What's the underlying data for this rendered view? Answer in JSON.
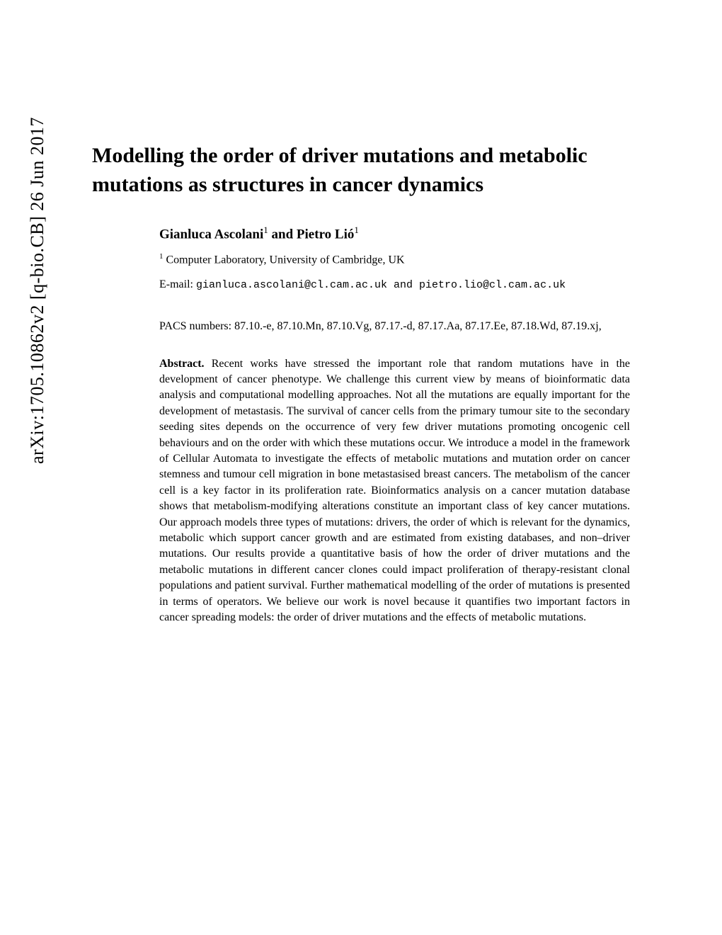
{
  "arxiv": {
    "identifier": "arXiv:1705.10862v2  [q-bio.CB]  26 Jun 2017"
  },
  "paper": {
    "title": "Modelling the order of driver mutations and metabolic mutations as structures in cancer dynamics",
    "author1_name": "Gianluca Ascolani",
    "author1_sup": "1",
    "author_and": " and ",
    "author2_name": "Pietro Lió",
    "author2_sup": "1",
    "affiliation_sup": "1",
    "affiliation_text": " Computer Laboratory, University of Cambridge, UK",
    "email_label": "E-mail: ",
    "email_value": "gianluca.ascolani@cl.cam.ac.uk and pietro.lio@cl.cam.ac.uk",
    "pacs": "PACS numbers:   87.10.-e, 87.10.Mn, 87.10.Vg, 87.17.-d, 87.17.Aa, 87.17.Ee, 87.18.Wd, 87.19.xj,",
    "abstract_label": "Abstract.",
    "abstract_text": "   Recent works have stressed the important role that random mutations have in the development of cancer phenotype.  We challenge this current view by means of bioinformatic data analysis and computational modelling approaches.  Not all the mutations are equally important for the development of metastasis. The survival of cancer cells from the primary tumour site to the secondary seeding sites depends on the occurrence of very few driver mutations promoting oncogenic cell behaviours and on the order with which these mutations occur.  We introduce a model in the framework of Cellular Automata to investigate the effects of metabolic mutations and mutation order on cancer stemness and tumour cell migration in bone metastasised breast cancers.  The metabolism of the cancer cell is a key factor in its proliferation rate. Bioinformatics analysis on a cancer mutation database shows that metabolism-modifying alterations constitute an important class of key cancer mutations.  Our approach models three types of mutations: drivers, the order of which is relevant for the dynamics, metabolic which support cancer growth and are estimated from existing databases, and non–driver mutations. Our results provide a quantitative basis of how the order of driver mutations and the metabolic mutations in different cancer clones could impact proliferation of therapy-resistant clonal populations and patient survival. Further mathematical modelling of the order of mutations is presented in terms of operators. We believe our work is novel because it quantifies two important factors in cancer spreading models: the order of driver mutations and the effects of metabolic mutations."
  },
  "colors": {
    "background": "#ffffff",
    "text": "#000000"
  },
  "typography": {
    "title_fontsize": 30,
    "author_fontsize": 19,
    "body_fontsize": 16,
    "arxiv_fontsize": 26
  }
}
